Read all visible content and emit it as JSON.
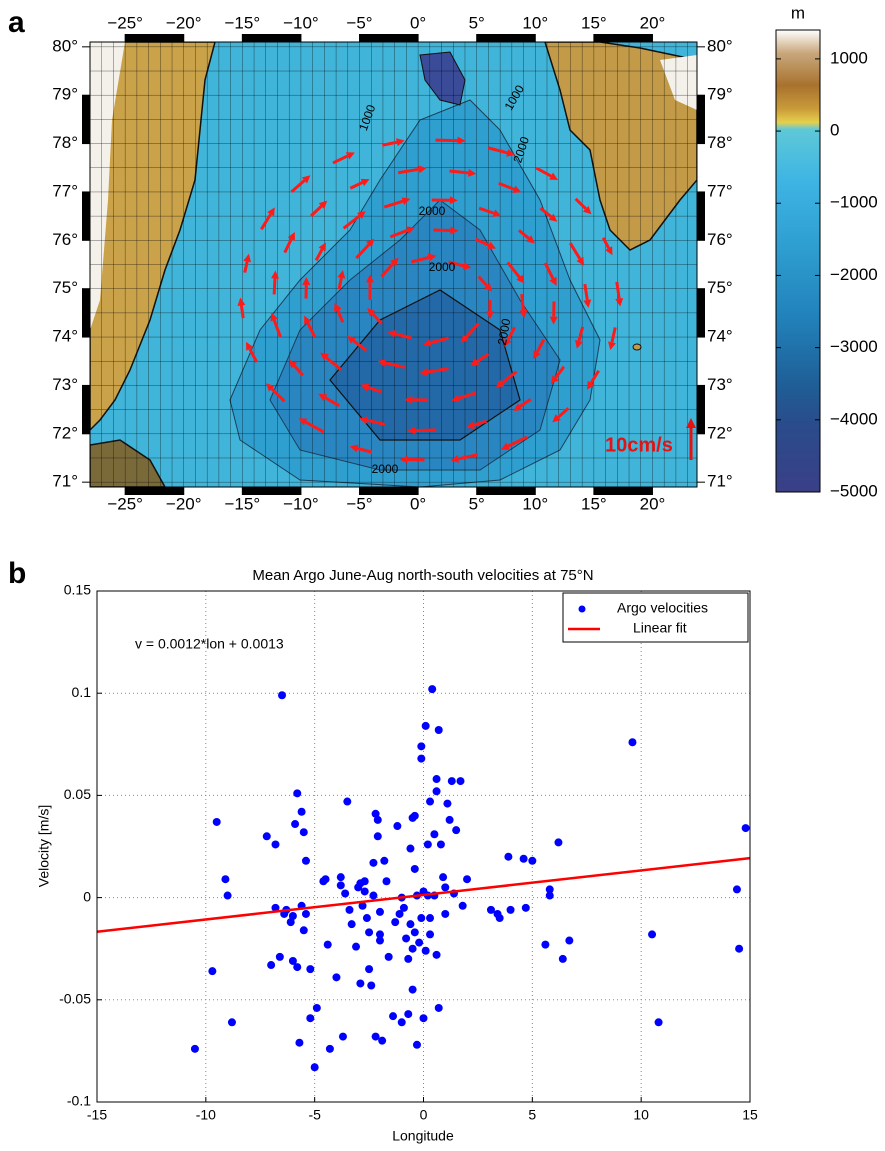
{
  "chart_data": [
    {
      "type": "map",
      "panel_label": "a",
      "xlim": [
        -28,
        23.8
      ],
      "ylim": [
        70.9,
        80.1
      ],
      "xticks": [
        {
          "value": -25,
          "label": "−25°"
        },
        {
          "value": -20,
          "label": "−20°"
        },
        {
          "value": -15,
          "label": "−15°"
        },
        {
          "value": -10,
          "label": "−10°"
        },
        {
          "value": -5,
          "label": "−5°"
        },
        {
          "value": 0,
          "label": "0°"
        },
        {
          "value": 5,
          "label": "5°"
        },
        {
          "value": 10,
          "label": "10°"
        },
        {
          "value": 15,
          "label": "15°"
        },
        {
          "value": 20,
          "label": "20°"
        }
      ],
      "yticks": [
        {
          "value": 71,
          "label": "71°"
        },
        {
          "value": 72,
          "label": "72°"
        },
        {
          "value": 73,
          "label": "73°"
        },
        {
          "value": 74,
          "label": "74°"
        },
        {
          "value": 75,
          "label": "75°"
        },
        {
          "value": 76,
          "label": "76°"
        },
        {
          "value": 77,
          "label": "77°"
        },
        {
          "value": 78,
          "label": "78°"
        },
        {
          "value": 79,
          "label": "79°"
        },
        {
          "value": 80,
          "label": "80°"
        }
      ],
      "grid": true,
      "colorbar": {
        "label": "m",
        "lim": [
          -5000,
          1400
        ],
        "ticks": [
          1000,
          0,
          {
            "value": -1000,
            "label": "−1000"
          },
          {
            "value": -2000,
            "label": "−2000"
          },
          {
            "value": -3000,
            "label": "−3000"
          },
          {
            "value": -4000,
            "label": "−4000"
          },
          {
            "value": -5000,
            "label": "−5000"
          }
        ]
      },
      "scale_label": "10cm/s",
      "contour_labels": [
        1000,
        1000,
        2000,
        2000,
        2000,
        2000,
        2000
      ]
    },
    {
      "type": "scatter",
      "panel_label": "b",
      "title": "Mean Argo June-Aug north-south velocities at 75°N",
      "x_label": "Longitude",
      "y_label": "Velocity [m/s]",
      "annotation": "v = 0.0012*lon + 0.0013",
      "xlim": [
        -15,
        15
      ],
      "ylim": [
        -0.1,
        0.15
      ],
      "xticks": [
        -15,
        -10,
        -5,
        0,
        5,
        10,
        15
      ],
      "yticks": [
        -0.1,
        -0.05,
        0,
        0.05,
        0.1,
        0.15
      ],
      "grid": true,
      "legend": "upper right",
      "series": [
        {
          "name": "Argo velocities",
          "type": "scatter",
          "color": "#0000ff",
          "x": [
            -10.5,
            -9.7,
            -9.5,
            -9.1,
            -9.0,
            -8.8,
            -7.2,
            -7.0,
            -6.8,
            -6.8,
            -6.6,
            -6.5,
            -6.4,
            -6.3,
            -6.1,
            -6.0,
            -6.0,
            -5.9,
            -5.8,
            -5.8,
            -5.7,
            -5.6,
            -5.6,
            -5.5,
            -5.5,
            -5.4,
            -5.4,
            -5.2,
            -5.2,
            -5.0,
            -4.9,
            -4.6,
            -4.5,
            -4.4,
            -4.3,
            -4.0,
            -3.8,
            -3.8,
            -3.7,
            -3.6,
            -3.5,
            -3.4,
            -3.3,
            -3.1,
            -3.0,
            -2.9,
            -2.9,
            -2.8,
            -2.7,
            -2.7,
            -2.6,
            -2.5,
            -2.5,
            -2.4,
            -2.3,
            -2.3,
            -2.2,
            -2.2,
            -2.1,
            -2.1,
            -2.0,
            -2.0,
            -2.0,
            -1.9,
            -1.8,
            -1.7,
            -1.6,
            -1.4,
            -1.3,
            -1.2,
            -1.1,
            -1.0,
            -1.0,
            -0.9,
            -0.8,
            -0.7,
            -0.7,
            -0.6,
            -0.6,
            -0.5,
            -0.5,
            -0.5,
            -0.4,
            -0.4,
            -0.4,
            -0.3,
            -0.3,
            -0.2,
            -0.1,
            -0.1,
            -0.1,
            0.0,
            0.0,
            0.1,
            0.1,
            0.2,
            0.2,
            0.3,
            0.3,
            0.3,
            0.4,
            0.5,
            0.5,
            0.6,
            0.6,
            0.6,
            0.7,
            0.7,
            0.8,
            0.9,
            1.0,
            1.0,
            1.1,
            1.2,
            1.3,
            1.4,
            1.5,
            1.7,
            1.8,
            2.0,
            3.1,
            3.4,
            3.5,
            3.9,
            4.0,
            4.6,
            4.7,
            5.0,
            5.6,
            5.8,
            5.8,
            6.2,
            6.4,
            6.7,
            9.6,
            10.5,
            10.8,
            14.4,
            14.5,
            14.8
          ],
          "values": [
            -0.074,
            -0.036,
            0.037,
            0.009,
            0.001,
            -0.061,
            0.03,
            -0.033,
            0.026,
            -0.005,
            -0.029,
            0.099,
            -0.008,
            -0.006,
            -0.012,
            -0.009,
            -0.031,
            0.036,
            0.051,
            -0.034,
            -0.071,
            -0.004,
            0.042,
            0.032,
            -0.016,
            -0.008,
            0.018,
            -0.035,
            -0.059,
            -0.083,
            -0.054,
            0.008,
            0.009,
            -0.023,
            -0.074,
            -0.039,
            0.01,
            0.006,
            -0.068,
            0.002,
            0.047,
            -0.006,
            -0.013,
            -0.024,
            0.005,
            0.007,
            -0.042,
            -0.004,
            0.008,
            0.003,
            -0.01,
            -0.017,
            -0.035,
            -0.043,
            0.001,
            0.017,
            0.041,
            -0.068,
            0.038,
            0.03,
            -0.007,
            -0.018,
            -0.021,
            -0.07,
            0.018,
            0.008,
            -0.029,
            -0.058,
            -0.012,
            0.035,
            -0.008,
            -0.061,
            0.0,
            -0.005,
            -0.02,
            -0.057,
            -0.03,
            0.024,
            -0.013,
            0.039,
            -0.045,
            -0.025,
            0.04,
            0.014,
            -0.017,
            -0.072,
            0.001,
            -0.022,
            0.074,
            0.068,
            -0.01,
            0.003,
            -0.059,
            -0.026,
            0.084,
            0.001,
            0.026,
            0.047,
            -0.01,
            -0.018,
            0.102,
            0.001,
            0.031,
            0.058,
            0.052,
            -0.028,
            0.082,
            -0.054,
            0.026,
            0.01,
            0.005,
            -0.008,
            0.046,
            0.038,
            0.057,
            0.002,
            0.033,
            0.057,
            -0.004,
            0.009,
            -0.006,
            -0.008,
            -0.01,
            0.02,
            -0.006,
            0.019,
            -0.005,
            0.018,
            -0.023,
            0.004,
            0.001,
            0.027,
            -0.03,
            -0.021,
            0.076,
            -0.018,
            -0.061,
            0.004,
            -0.025,
            0.034
          ]
        },
        {
          "name": "Linear fit",
          "type": "line",
          "color": "#ff0000",
          "x": [
            -15,
            15
          ],
          "values": [
            -0.0167,
            0.0193
          ]
        }
      ]
    }
  ]
}
